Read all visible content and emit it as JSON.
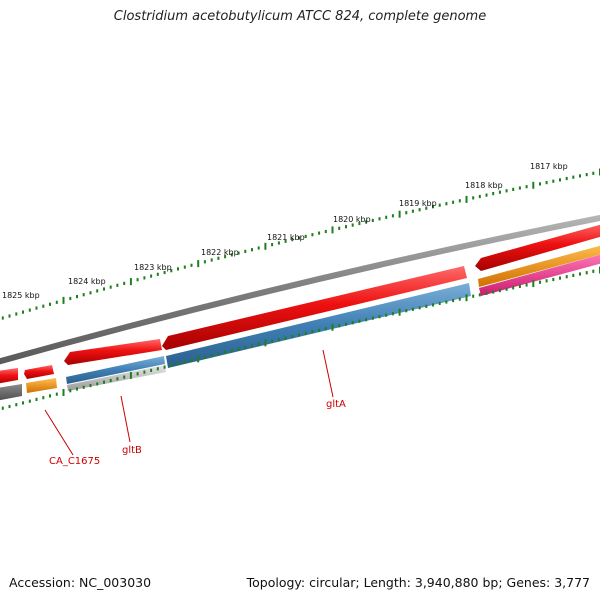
{
  "title": "Clostridium acetobutylicum ATCC 824, complete genome",
  "footer": {
    "accession": "Accession: NC_003030",
    "summary": "Topology: circular; Length: 3,940,880 bp; Genes: 3,777"
  },
  "scale_labels": [
    {
      "text": "1817 kbp"
    },
    {
      "text": "1818 kbp"
    },
    {
      "text": "1819 kbp"
    },
    {
      "text": "1820 kbp"
    },
    {
      "text": "1821 kbp"
    },
    {
      "text": "1822 kbp"
    },
    {
      "text": "1823 kbp"
    },
    {
      "text": "1824 kbp"
    },
    {
      "text": "1825 kbp"
    }
  ],
  "gene_labels": [
    {
      "text": "CA_C1675"
    },
    {
      "text": "gltB"
    },
    {
      "text": "gltA"
    }
  ],
  "colors": {
    "backbone": "#808080",
    "forward_cds": "#ee1111",
    "reverse_cds": "#3f7fb4",
    "reverse_cds_pale": "#b0b0b0",
    "orange_track": "#f0900a",
    "pink_track": "#ee3a90",
    "dark_track": "#666666",
    "scale_ticks": "#1f7f1f",
    "gene_label": "#cc0000"
  }
}
